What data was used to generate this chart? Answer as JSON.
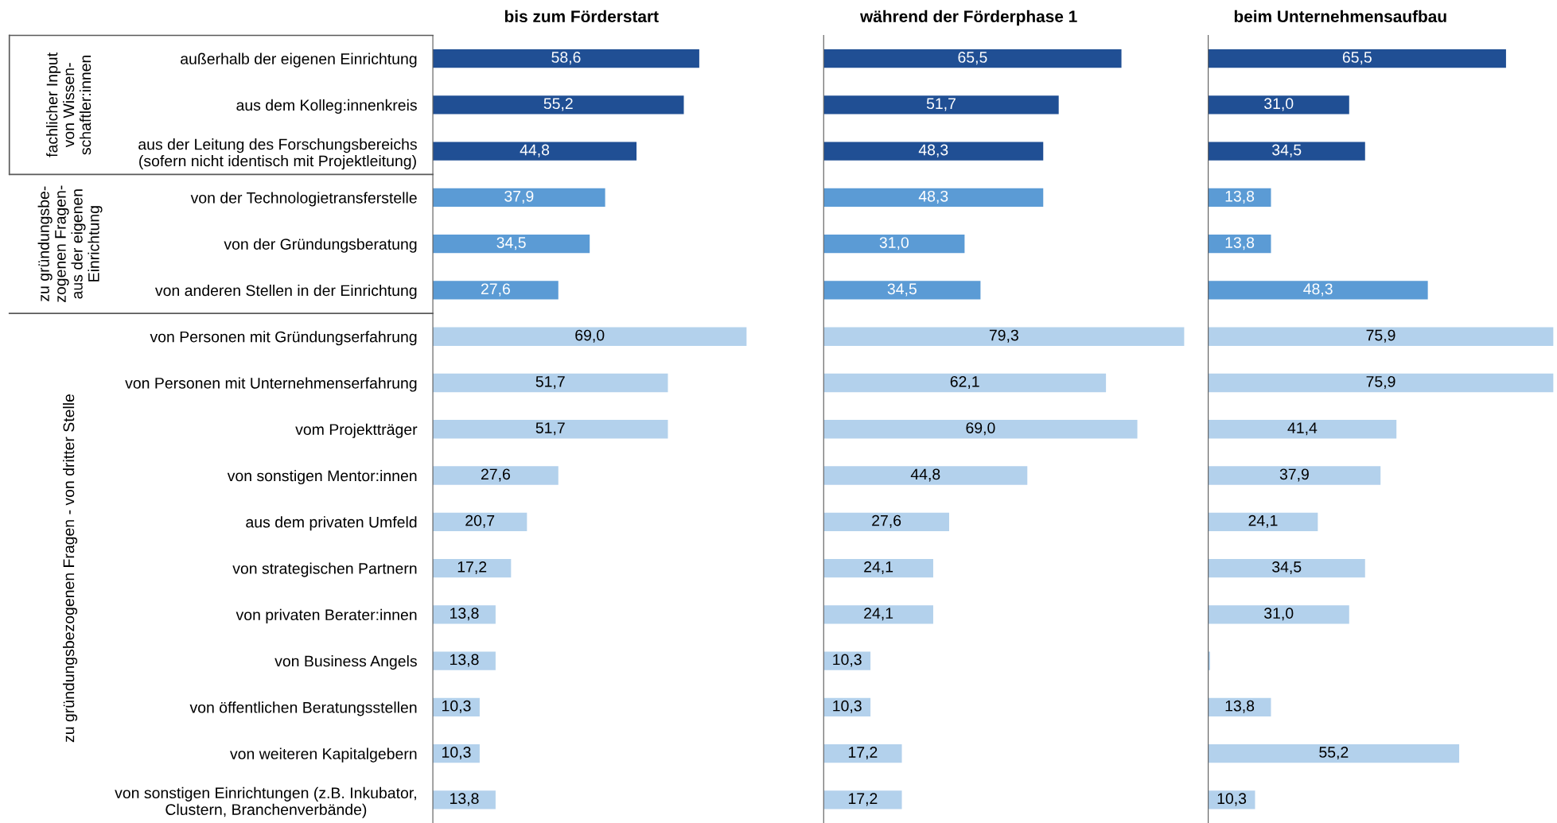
{
  "chart_data": [
    {
      "type": "bar",
      "orientation": "horizontal",
      "title": "bis zum Förderstart",
      "xlim": [
        0,
        86
      ],
      "categories": [
        "außerhalb der eigenen Einrichtung",
        "aus dem Kolleg:innenkreis",
        "aus der Leitung des Forschungsbereichs\n(sofern nicht identisch mit Projektleitung)",
        "von der Technologietransferstelle",
        "von der Gründungsberatung",
        "von anderen Stellen in der Einrichtung",
        "von Personen mit Gründungserfahrung",
        "von Personen mit Unternehmenserfahrung",
        "vom Projektträger",
        "von sonstigen Mentor:innen",
        "aus dem privaten Umfeld",
        "von strategischen Partnern",
        "von privaten Berater:innen",
        "von Business Angels",
        "von öffentlichen Beratungsstellen",
        "von weiteren Kapitalgebern",
        "von sonstigen Einrichtungen (z.B. Inkubator,\nClustern, Branchenverbände)"
      ],
      "values": [
        58.6,
        55.2,
        44.8,
        37.9,
        34.5,
        27.6,
        69.0,
        51.7,
        51.7,
        27.6,
        20.7,
        17.2,
        13.8,
        13.8,
        10.3,
        10.3,
        13.8
      ],
      "value_labels": [
        "58,6",
        "55,2",
        "44,8",
        "37,9",
        "34,5",
        "27,6",
        "69,0",
        "51,7",
        "51,7",
        "27,6",
        "20,7",
        "17,2",
        "13,8",
        "13,8",
        "10,3",
        "10,3",
        "13,8"
      ],
      "colors": [
        "#204f94",
        "#204f94",
        "#204f94",
        "#5b9bd5",
        "#5b9bd5",
        "#5b9bd5",
        "#b3d1ec",
        "#b3d1ec",
        "#b3d1ec",
        "#b3d1ec",
        "#b3d1ec",
        "#b3d1ec",
        "#b3d1ec",
        "#b3d1ec",
        "#b3d1ec",
        "#b3d1ec",
        "#b3d1ec"
      ],
      "annotations": [
        "fachlicher Input\nvon Wissen-\nschaftler:innen",
        "zu gründungsbe-\nzogenen Fragen-\naus der eigenen\nEinrichtung",
        "zu gründungsbezogenen Fragen - von dritter Stelle"
      ]
    },
    {
      "type": "bar",
      "orientation": "horizontal",
      "title": "während der Förderphase 1",
      "xlim": [
        0,
        84
      ],
      "categories": [
        null,
        null,
        null,
        null,
        null,
        null,
        null,
        null,
        null,
        null,
        null,
        null,
        null,
        null,
        null,
        null,
        null
      ],
      "values": [
        65.5,
        51.7,
        48.3,
        48.3,
        31.0,
        34.5,
        79.3,
        62.1,
        69.0,
        44.8,
        27.6,
        24.1,
        24.1,
        10.3,
        10.3,
        17.2,
        17.2
      ],
      "value_labels": [
        "65,5",
        "51,7",
        "48,3",
        "48,3",
        "31,0",
        "34,5",
        "79,3",
        "62,1",
        "69,0",
        "44,8",
        "27,6",
        "24,1",
        "24,1",
        "10,3",
        "10,3",
        "17,2",
        "17,2"
      ],
      "colors": [
        "#204f94",
        "#204f94",
        "#204f94",
        "#5b9bd5",
        "#5b9bd5",
        "#5b9bd5",
        "#b3d1ec",
        "#b3d1ec",
        "#b3d1ec",
        "#b3d1ec",
        "#b3d1ec",
        "#b3d1ec",
        "#b3d1ec",
        "#b3d1ec",
        "#b3d1ec",
        "#b3d1ec",
        "#b3d1ec"
      ]
    },
    {
      "type": "bar",
      "orientation": "horizontal",
      "title": "beim Unternehmensaufbau",
      "xlim": [
        0,
        76.5
      ],
      "categories": [
        null,
        null,
        null,
        null,
        null,
        null,
        null,
        null,
        null,
        null,
        null,
        null,
        null,
        null,
        null,
        null,
        null
      ],
      "values": [
        65.5,
        31.0,
        34.5,
        13.8,
        13.8,
        48.3,
        75.9,
        75.9,
        41.4,
        37.9,
        24.1,
        34.5,
        31.0,
        0.4,
        13.8,
        55.2,
        10.3
      ],
      "value_labels": [
        "65,5",
        "31,0",
        "34,5",
        "13,8",
        "13,8",
        "48,3",
        "75,9",
        "75,9",
        "41,4",
        "37,9",
        "24,1",
        "34,5",
        "31,0",
        null,
        "13,8",
        "55,2",
        "10,3"
      ],
      "colors": [
        "#204f94",
        "#204f94",
        "#204f94",
        "#5b9bd5",
        "#5b9bd5",
        "#5b9bd5",
        "#b3d1ec",
        "#b3d1ec",
        "#b3d1ec",
        "#b3d1ec",
        "#b3d1ec",
        "#b3d1ec",
        "#b3d1ec",
        "#b3d1ec",
        "#b3d1ec",
        "#b3d1ec",
        "#b3d1ec"
      ]
    }
  ]
}
